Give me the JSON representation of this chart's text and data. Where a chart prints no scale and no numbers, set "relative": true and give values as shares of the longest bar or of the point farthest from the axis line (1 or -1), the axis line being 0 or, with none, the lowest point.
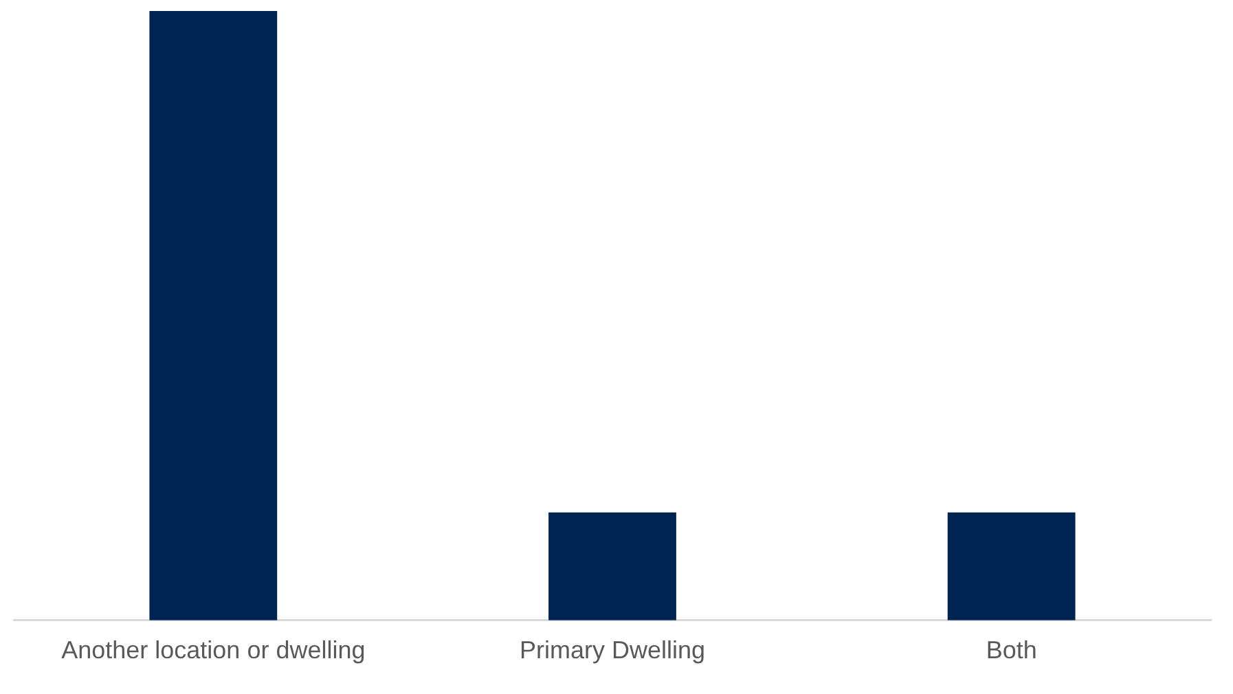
{
  "chart_data": {
    "type": "bar",
    "relative": true,
    "categories": [
      "Another location or dwelling",
      "Primary Dwelling",
      "Both"
    ],
    "values": [
      1,
      0.177,
      0.177
    ],
    "color": "#002451",
    "grid": false,
    "legend": false
  }
}
